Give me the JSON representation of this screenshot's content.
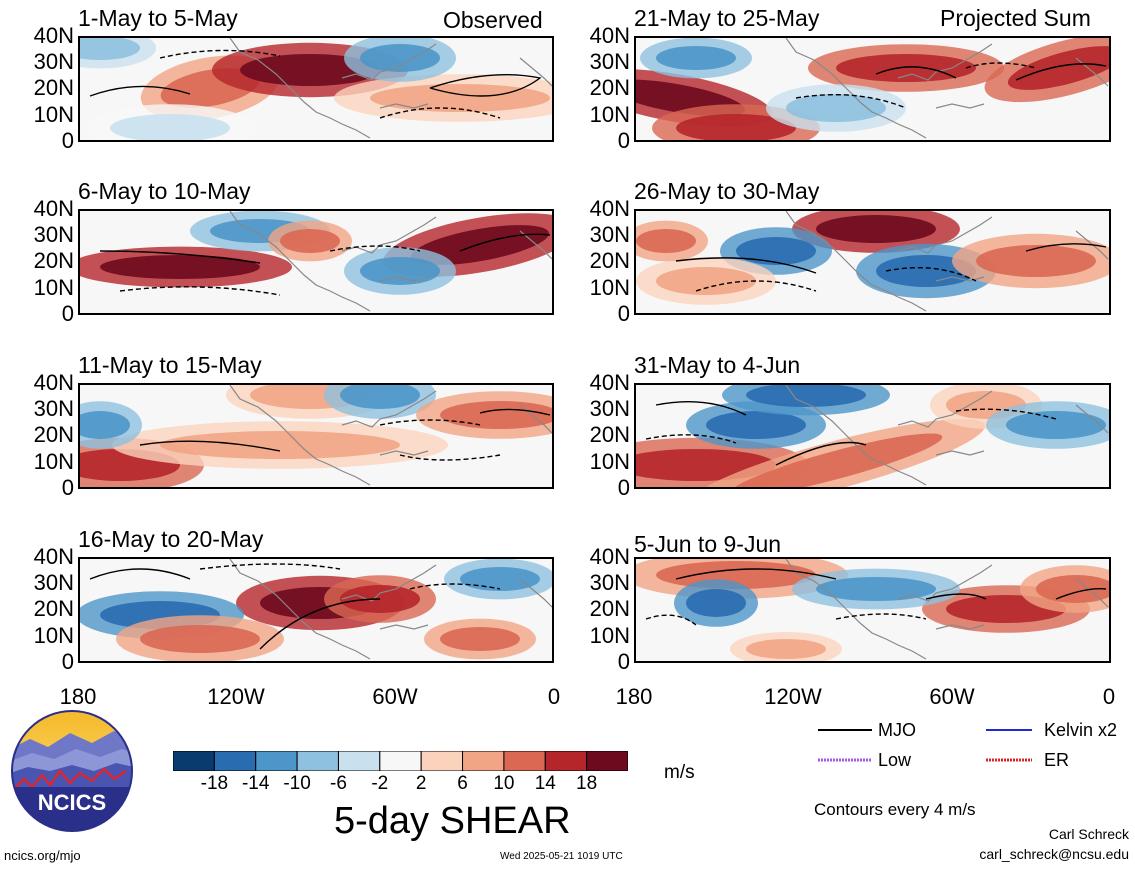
{
  "labels": {
    "observed": "Observed",
    "projected": "Projected Sum",
    "main_title": "5-day SHEAR",
    "units": "m/s",
    "contours_note": "Contours every 4 m/s",
    "author": "Carl Schreck",
    "email": "carl_schreck@ncsu.edu",
    "site": "ncics.org/mjo",
    "timestamp": "Wed 2025-05-21 1019 UTC",
    "logo_text": "NCICS"
  },
  "panels_left": [
    "1-May to 5-May",
    "6-May to 10-May",
    "11-May to 15-May",
    "16-May to 20-May"
  ],
  "panels_right": [
    "21-May to 25-May",
    "26-May to 30-May",
    "31-May to 4-Jun",
    "5-Jun to 9-Jun"
  ],
  "y_ticks": [
    "40N",
    "30N",
    "20N",
    "10N",
    "0"
  ],
  "x_ticks": [
    "180",
    "120W",
    "60W",
    "0"
  ],
  "colorbar": {
    "ticks": [
      "-18",
      "-14",
      "-10",
      "-6",
      "-2",
      "2",
      "6",
      "10",
      "14",
      "18"
    ],
    "colors": [
      "#0a3b6f",
      "#2a6cb0",
      "#4d96c9",
      "#8ec1df",
      "#c9e0ee",
      "#f7f7f7",
      "#fbd3bd",
      "#f1a585",
      "#da6853",
      "#b5262b",
      "#6d0a1e"
    ]
  },
  "legend": [
    {
      "label": "MJO",
      "color": "#000000",
      "style": "solid"
    },
    {
      "label": "Kelvin x2",
      "color": "#1f2bd1",
      "style": "solid"
    },
    {
      "label": "Low",
      "color": "#a35be0",
      "style": "dotted"
    },
    {
      "label": "ER",
      "color": "#d42a2a",
      "style": "solid"
    }
  ]
}
